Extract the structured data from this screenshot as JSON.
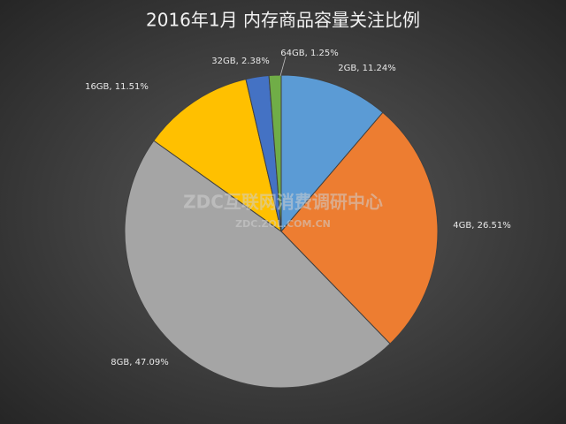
{
  "chart_data": {
    "type": "pie",
    "title": "2016年1月 内存商品容量关注比例",
    "watermark": "ZDC互联网消费调研中心",
    "watermark_url": "ZDC.ZOL.COM.CN",
    "values": [
      11.24,
      26.51,
      47.09,
      11.51,
      2.38,
      1.25
    ],
    "value_labels": [
      "2GB, 11.24%",
      "4GB, 26.51%",
      "8GB, 47.09%",
      "16GB, 11.51%",
      "32GB, 2.38%",
      "64GB, 1.25%"
    ],
    "colors": [
      "#5b9bd5",
      "#ed7d31",
      "#a5a5a5",
      "#ffc000",
      "#4472c4",
      "#70ad47"
    ]
  }
}
